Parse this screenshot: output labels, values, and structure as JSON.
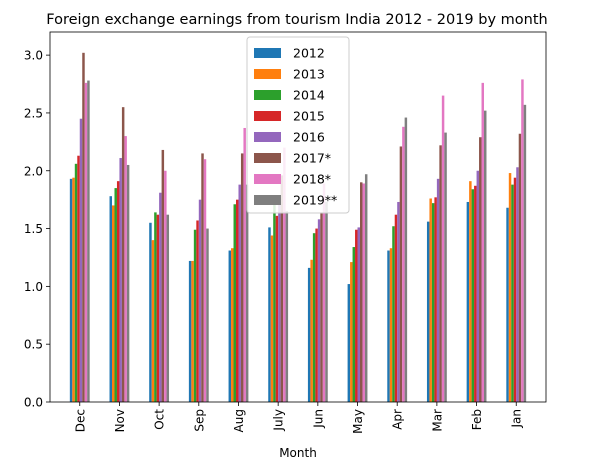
{
  "chart_data": {
    "type": "bar",
    "title": "Foreign exchange earnings from tourism India 2012 - 2019 by month",
    "xlabel": "Month",
    "ylabel": "",
    "ylim": [
      0,
      3.2
    ],
    "yticks": [
      "0.0",
      "0.5",
      "1.0",
      "1.5",
      "2.0",
      "2.5",
      "3.0"
    ],
    "grid": false,
    "legend_position": "upper-center",
    "categories": [
      "Dec",
      "Nov",
      "Oct",
      "Sep",
      "Aug",
      "July",
      "Jun",
      "May",
      "Apr",
      "Mar",
      "Feb",
      "Jan"
    ],
    "series": [
      {
        "name": "2012",
        "color": "#1f77b4",
        "values": [
          1.93,
          1.78,
          1.55,
          1.22,
          1.31,
          1.51,
          1.16,
          1.02,
          1.31,
          1.56,
          1.73,
          1.68
        ]
      },
      {
        "name": "2013",
        "color": "#ff7f0e",
        "values": [
          1.94,
          1.7,
          1.4,
          1.22,
          1.33,
          1.44,
          1.23,
          1.21,
          1.33,
          1.76,
          1.91,
          1.98
        ]
      },
      {
        "name": "2014",
        "color": "#2ca02c",
        "values": [
          2.06,
          1.85,
          1.64,
          1.49,
          1.71,
          1.71,
          1.46,
          1.34,
          1.52,
          1.72,
          1.84,
          1.88
        ]
      },
      {
        "name": "2015",
        "color": "#d62728",
        "values": [
          2.13,
          1.91,
          1.62,
          1.57,
          1.75,
          1.61,
          1.5,
          1.49,
          1.62,
          1.77,
          1.87,
          1.94
        ]
      },
      {
        "name": "2016",
        "color": "#9467bd",
        "values": [
          2.45,
          2.11,
          1.81,
          1.75,
          1.88,
          1.78,
          1.58,
          1.51,
          1.73,
          1.93,
          2.0,
          2.03
        ]
      },
      {
        "name": "2017*",
        "color": "#8c564b",
        "values": [
          3.02,
          2.55,
          2.18,
          2.15,
          2.15,
          1.96,
          1.64,
          1.9,
          2.21,
          2.22,
          2.29,
          2.32
        ]
      },
      {
        "name": "2018*",
        "color": "#e377c2",
        "values": [
          2.76,
          2.3,
          2.0,
          2.1,
          2.37,
          2.2,
          1.89,
          1.89,
          2.38,
          2.65,
          2.76,
          2.79
        ]
      },
      {
        "name": "2019**",
        "color": "#7f7f7f",
        "values": [
          2.78,
          2.05,
          1.62,
          1.5,
          1.88,
          1.65,
          1.73,
          1.97,
          2.46,
          2.33,
          2.52,
          2.57
        ]
      }
    ]
  }
}
